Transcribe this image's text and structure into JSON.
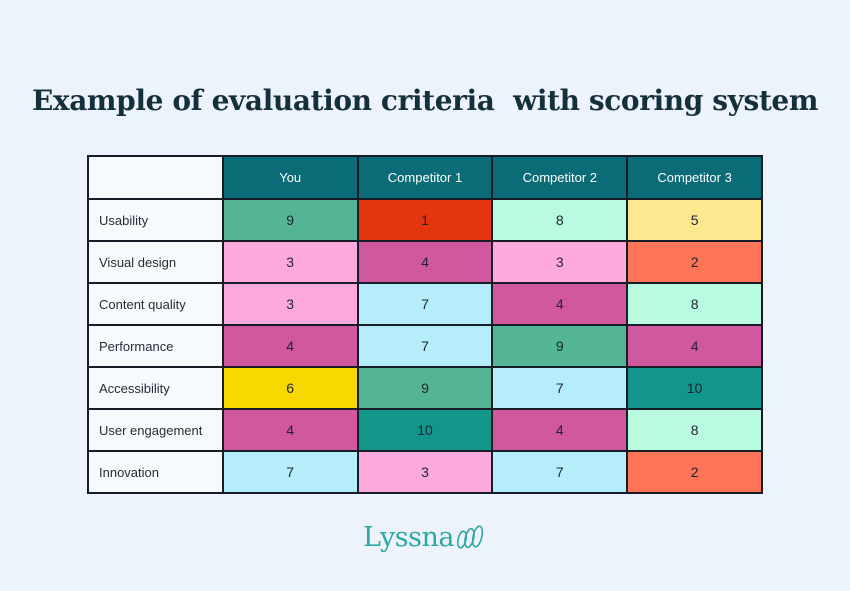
{
  "title": "Example of evaluation criteria  with scoring system",
  "colors": {
    "page_bg": "#edf3fb",
    "label_bg": "#f7fafd",
    "header_bg": "#0b6c77",
    "header_text": "#ffffff",
    "border": "#171d27",
    "cell_text": "#1e2530",
    "title_text": "#14303c",
    "logo_teal": "#2ea89e"
  },
  "palette": {
    "green": "#53b593",
    "red": "#e3350e",
    "mint": "#b9fbe0",
    "pale_yellow": "#fce98f",
    "pink": "#fda9de",
    "magenta": "#cf589f",
    "coral": "#fd7457",
    "light_blue": "#b6edfa",
    "yellow": "#f8d800",
    "teal": "#12968c"
  },
  "table": {
    "columns": [
      "",
      "You",
      "Competitor 1",
      "Competitor 2",
      "Competitor 3"
    ],
    "rows": [
      {
        "label": "Usability",
        "scores": [
          "9",
          "1",
          "8",
          "5"
        ],
        "colors": [
          "green",
          "red",
          "mint",
          "pale_yellow"
        ]
      },
      {
        "label": "Visual design",
        "scores": [
          "3",
          "4",
          "3",
          "2"
        ],
        "colors": [
          "pink",
          "magenta",
          "pink",
          "coral"
        ]
      },
      {
        "label": "Content quality",
        "scores": [
          "3",
          "7",
          "4",
          "8"
        ],
        "colors": [
          "pink",
          "light_blue",
          "magenta",
          "mint"
        ]
      },
      {
        "label": "Performance",
        "scores": [
          "4",
          "7",
          "9",
          "4"
        ],
        "colors": [
          "magenta",
          "light_blue",
          "green",
          "magenta"
        ]
      },
      {
        "label": "Accessibility",
        "scores": [
          "6",
          "9",
          "7",
          "10"
        ],
        "colors": [
          "yellow",
          "green",
          "light_blue",
          "teal"
        ]
      },
      {
        "label": "User engagement",
        "scores": [
          "4",
          "10",
          "4",
          "8"
        ],
        "colors": [
          "magenta",
          "teal",
          "magenta",
          "mint"
        ]
      },
      {
        "label": "Innovation",
        "scores": [
          "7",
          "3",
          "7",
          "2"
        ],
        "colors": [
          "light_blue",
          "pink",
          "light_blue",
          "coral"
        ]
      }
    ]
  },
  "logo": {
    "text": "Lyssna",
    "mark": "three-loops-icon"
  },
  "chart_data": {
    "type": "table",
    "title": "Example of evaluation criteria  with scoring system",
    "categories": [
      "Usability",
      "Visual design",
      "Content quality",
      "Performance",
      "Accessibility",
      "User engagement",
      "Innovation"
    ],
    "series": [
      {
        "name": "You",
        "values": [
          9,
          3,
          3,
          4,
          6,
          4,
          7
        ]
      },
      {
        "name": "Competitor 1",
        "values": [
          1,
          4,
          7,
          7,
          9,
          10,
          3
        ]
      },
      {
        "name": "Competitor 2",
        "values": [
          8,
          3,
          4,
          9,
          7,
          4,
          7
        ]
      },
      {
        "name": "Competitor 3",
        "values": [
          5,
          2,
          8,
          4,
          10,
          8,
          2
        ]
      }
    ],
    "value_range": [
      1,
      10
    ],
    "legend_position": "none",
    "grid": "table-borders"
  }
}
